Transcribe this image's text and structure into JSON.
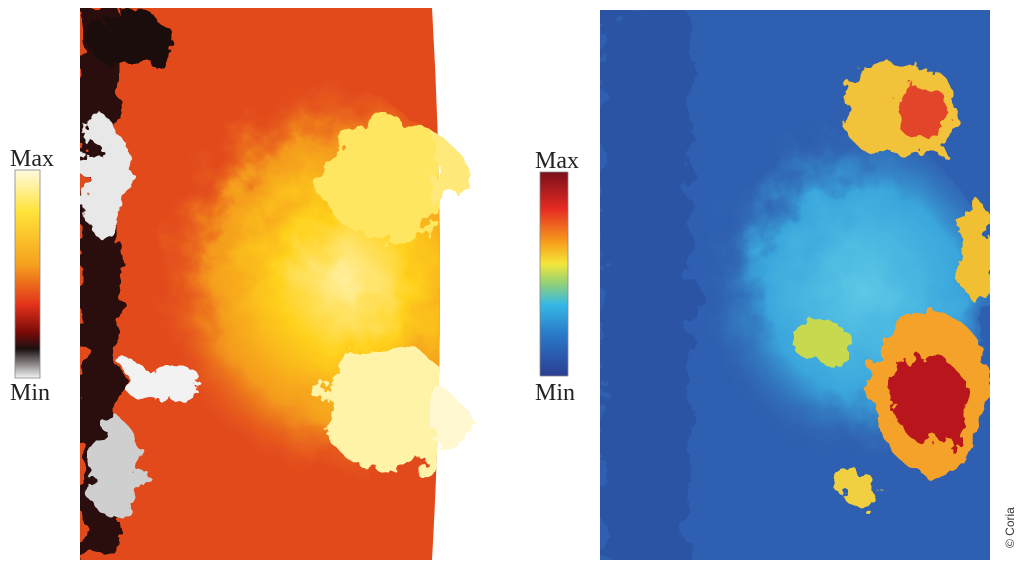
{
  "left_panel": {
    "colorbar": {
      "max_label": "Max",
      "min_label": "Min"
    }
  },
  "right_panel": {
    "colorbar": {
      "max_label": "Max",
      "min_label": "Min"
    }
  },
  "credit": "© Coria"
}
